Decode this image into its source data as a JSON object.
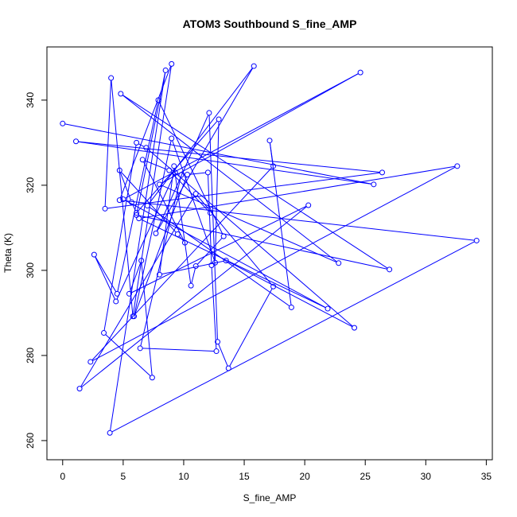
{
  "chart_data": {
    "type": "scatter",
    "title": "ATOM3 Southbound S_fine_AMP",
    "xlabel": "S_fine_AMP",
    "ylabel": "Theta (K)",
    "xlim": [
      -1.3,
      35.5
    ],
    "ylim": [
      255.5,
      352.5
    ],
    "xticks": [
      0,
      5,
      10,
      15,
      20,
      25,
      30,
      35
    ],
    "yticks": [
      260,
      280,
      300,
      320,
      340
    ],
    "grid": false,
    "legend": "none",
    "connected": true,
    "color": "#0000ff",
    "points": [
      [
        0.0,
        334.5
      ],
      [
        25.7,
        320.2
      ],
      [
        1.1,
        330.3
      ],
      [
        26.4,
        323.0
      ],
      [
        3.5,
        314.5
      ],
      [
        4.0,
        345.2
      ],
      [
        5.8,
        289.2
      ],
      [
        9.0,
        348.5
      ],
      [
        4.7,
        316.5
      ],
      [
        34.2,
        307.0
      ],
      [
        3.9,
        261.8
      ],
      [
        8.5,
        347.0
      ],
      [
        6.1,
        313.0
      ],
      [
        27.0,
        300.2
      ],
      [
        4.8,
        341.5
      ],
      [
        22.8,
        301.7
      ],
      [
        8.0,
        320.2
      ],
      [
        24.6,
        346.5
      ],
      [
        5.0,
        316.7
      ],
      [
        21.9,
        291.0
      ],
      [
        6.3,
        312.2
      ],
      [
        32.6,
        324.5
      ],
      [
        2.3,
        278.5
      ],
      [
        17.4,
        324.5
      ],
      [
        17.1,
        330.5
      ],
      [
        18.9,
        291.3
      ],
      [
        7.0,
        315.2
      ],
      [
        15.8,
        348.0
      ],
      [
        7.7,
        308.7
      ],
      [
        12.1,
        337.0
      ],
      [
        12.8,
        283.2
      ],
      [
        13.7,
        277.0
      ],
      [
        17.4,
        296.2
      ],
      [
        11.0,
        318.0
      ],
      [
        1.4,
        272.2
      ],
      [
        20.3,
        315.3
      ],
      [
        5.5,
        294.5
      ],
      [
        6.5,
        302.3
      ],
      [
        7.4,
        274.8
      ],
      [
        3.4,
        285.3
      ],
      [
        6.1,
        330.0
      ],
      [
        6.9,
        328.8
      ],
      [
        24.1,
        286.5
      ],
      [
        13.5,
        302.3
      ],
      [
        8.0,
        299.0
      ],
      [
        9.2,
        324.5
      ],
      [
        10.6,
        296.4
      ],
      [
        11.0,
        301.0
      ],
      [
        13.3,
        308.0
      ],
      [
        7.9,
        340.0
      ],
      [
        4.5,
        294.5
      ],
      [
        2.6,
        303.7
      ],
      [
        4.4,
        292.7
      ],
      [
        9.3,
        323.0
      ],
      [
        9.8,
        322.4
      ],
      [
        6.4,
        281.7
      ],
      [
        12.7,
        281.0
      ],
      [
        12.3,
        301.2
      ],
      [
        12.0,
        323.0
      ],
      [
        10.3,
        322.5
      ],
      [
        5.9,
        289.2
      ],
      [
        9.0,
        331.0
      ],
      [
        12.6,
        301.8
      ],
      [
        12.9,
        335.5
      ],
      [
        6.1,
        313.5
      ],
      [
        5.7,
        316.0
      ],
      [
        4.7,
        323.5
      ],
      [
        9.5,
        308.5
      ],
      [
        10.1,
        306.5
      ],
      [
        6.6,
        326.0
      ],
      [
        8.8,
        323.5
      ],
      [
        12.2,
        313.5
      ]
    ]
  }
}
